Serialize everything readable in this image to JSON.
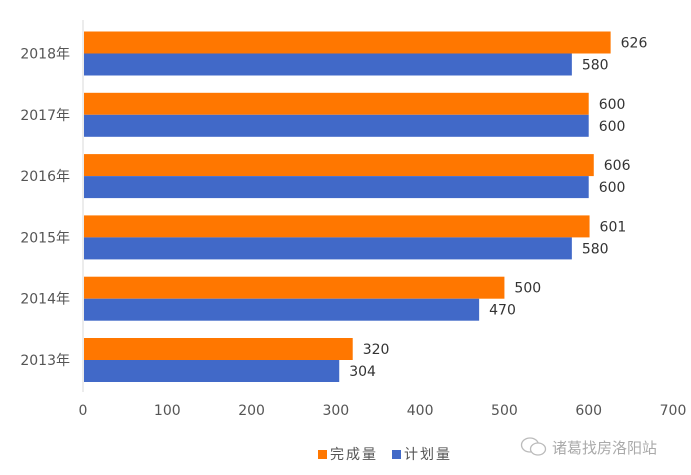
{
  "chart_data": {
    "type": "bar",
    "orientation": "horizontal",
    "categories": [
      "2013年",
      "2014年",
      "2015年",
      "2016年",
      "2017年",
      "2018年"
    ],
    "series": [
      {
        "name": "完成量",
        "color": "#FF7700",
        "values": [
          320,
          500,
          601,
          606,
          600,
          626
        ]
      },
      {
        "name": "计划量",
        "color": "#4169C8",
        "values": [
          304,
          470,
          580,
          600,
          600,
          580
        ]
      }
    ],
    "xlim": [
      0,
      700
    ],
    "xticks": [
      "0",
      "100",
      "200",
      "300",
      "400",
      "500",
      "600",
      "700"
    ],
    "grid": false,
    "legend_position": "bottom"
  },
  "legend": {
    "items": [
      "完成量",
      "计划量"
    ]
  },
  "watermark": {
    "text": "诸葛找房洛阳站",
    "icon": "wechat-icon"
  }
}
